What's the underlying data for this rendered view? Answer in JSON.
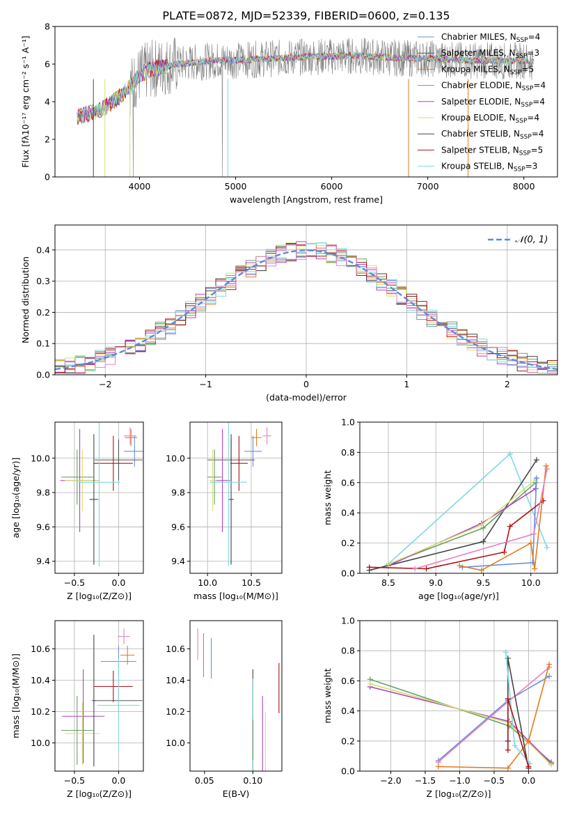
{
  "figure": {
    "title": "PLATE=0872, MJD=52339, FIBERID=0600, z=0.135"
  },
  "colors": {
    "chabrier_miles": "#6b8fdc",
    "salpeter_miles": "#555555",
    "kroupa_miles": "#e07b1a",
    "chabrier_elodie": "#6aa06a",
    "salpeter_elodie": "#b040c0",
    "kroupa_elodie": "#d4e070",
    "chabrier_stelib": "#444444",
    "salpeter_stelib": "#b01010",
    "kroupa_stelib": "#7fd8e0",
    "data_grey": "#808080",
    "pink": "#e880c0",
    "normal_curve": "#5b8cdc"
  },
  "chart_data": [
    {
      "id": "spectrum",
      "type": "line",
      "xlabel": "wavelength [Angstrom, rest frame]",
      "ylabel": "Flux [fλ10⁻¹⁷ erg cm⁻² s⁻¹ A⁻¹]",
      "xlim": [
        3120,
        8350
      ],
      "ylim": [
        0,
        8
      ],
      "xticks": [
        "4000",
        "5000",
        "6000",
        "7000",
        "8000"
      ],
      "yticks": [
        "0",
        "2",
        "4",
        "6",
        "8"
      ],
      "x": [
        3350,
        3500,
        3600,
        3700,
        3800,
        3900,
        4000,
        4100,
        4200,
        4300,
        4400,
        4600,
        4800,
        5000,
        5200,
        5400,
        5600,
        5800,
        6000,
        6200,
        6400,
        6600,
        6800,
        7000,
        7200,
        7400,
        7600,
        7800,
        8000,
        8100
      ],
      "model_y": [
        3.2,
        3.4,
        3.6,
        3.9,
        4.3,
        4.8,
        5.4,
        5.7,
        5.8,
        5.9,
        6.0,
        6.1,
        6.2,
        6.2,
        6.25,
        6.3,
        6.35,
        6.4,
        6.4,
        6.45,
        6.4,
        6.35,
        6.3,
        6.3,
        6.25,
        6.2,
        6.2,
        6.15,
        6.2,
        6.1
      ],
      "legend": [
        "Chabrier MILES, N_SSP=4",
        "Salpeter MILES, N_SSP=3",
        "Kroupa MILES, N_SSP=5",
        "Chabrier ELODIE, N_SSP=4",
        "Salpeter ELODIE, N_SSP=4",
        "Kroupa ELODIE, N_SSP=4",
        "Chabrier STELIB, N_SSP=4",
        "Salpeter STELIB, N_SSP=5",
        "Kroupa STELIB, N_SSP=3"
      ]
    },
    {
      "id": "residuals",
      "type": "line",
      "xlabel": "(data-model)/error",
      "ylabel": "Normed distribution",
      "xlim": [
        -2.5,
        2.5
      ],
      "ylim": [
        0,
        0.48
      ],
      "xticks": [
        "−2",
        "−1",
        "0",
        "1",
        "2"
      ],
      "yticks": [
        "0.0",
        "0.1",
        "0.2",
        "0.3",
        "0.4"
      ],
      "legend": [
        "𝒩(0, 1)"
      ],
      "bin_width": 0.1
    },
    {
      "id": "age_vs_z",
      "type": "scatter",
      "xlabel": "Z [log₁₀(Z/Z⊙)]",
      "ylabel": "age  [log₁₀(age/yr)]",
      "xlim": [
        -0.72,
        0.28
      ],
      "ylim": [
        9.33,
        10.21
      ],
      "xticks": [
        "−0.5",
        "0.0"
      ],
      "yticks": [
        "9.4",
        "9.6",
        "9.8",
        "10.0"
      ],
      "points": [
        {
          "color": "chabrier_miles",
          "x": 0.18,
          "xerr": 0.12,
          "y": 10.04,
          "yerr": 0.09
        },
        {
          "color": "salpeter_miles",
          "x": 0.0,
          "xerr": 0.27,
          "y": 9.99,
          "yerr": 0.12
        },
        {
          "color": "kroupa_miles",
          "x": 0.14,
          "xerr": 0.07,
          "y": 10.12,
          "yerr": 0.05
        },
        {
          "color": "chabrier_elodie",
          "x": -0.47,
          "xerr": 0.18,
          "y": 9.89,
          "yerr": 0.16
        },
        {
          "color": "salpeter_elodie",
          "x": -0.44,
          "xerr": 0.22,
          "y": 9.87,
          "yerr": 0.3
        },
        {
          "color": "kroupa_elodie",
          "x": -0.41,
          "xerr": 0.2,
          "y": 9.87,
          "yerr": 0.18
        },
        {
          "color": "chabrier_stelib",
          "x": -0.28,
          "xerr": 0.05,
          "y": 9.76,
          "yerr": 0.38
        },
        {
          "color": "salpeter_stelib",
          "x": -0.06,
          "xerr": 0.22,
          "y": 9.97,
          "yerr": 0.16
        },
        {
          "color": "kroupa_stelib",
          "x": -0.22,
          "xerr": 0.24,
          "y": 9.86,
          "yerr": 0.49
        },
        {
          "color": "pink",
          "x": 0.13,
          "xerr": 0.07,
          "y": 10.13,
          "yerr": 0.05
        }
      ]
    },
    {
      "id": "age_vs_mass",
      "type": "scatter",
      "xlabel": "mass [log₁₀(M/M⊙)]",
      "ylabel": "",
      "xlim": [
        9.8,
        10.85
      ],
      "ylim": [
        9.33,
        10.21
      ],
      "xticks": [
        "10.0",
        "10.5"
      ],
      "yticks": [
        "9.4",
        "9.6",
        "9.8",
        "10.0"
      ],
      "points": [
        {
          "color": "chabrier_miles",
          "x": 10.52,
          "xerr": 0.1,
          "y": 10.04,
          "yerr": 0.09
        },
        {
          "color": "salpeter_miles",
          "x": 10.27,
          "xerr": 0.27,
          "y": 9.99,
          "yerr": 0.12
        },
        {
          "color": "kroupa_miles",
          "x": 10.56,
          "xerr": 0.06,
          "y": 10.12,
          "yerr": 0.05
        },
        {
          "color": "chabrier_elodie",
          "x": 10.08,
          "xerr": 0.08,
          "y": 9.89,
          "yerr": 0.16
        },
        {
          "color": "salpeter_elodie",
          "x": 10.17,
          "xerr": 0.09,
          "y": 9.87,
          "yerr": 0.3
        },
        {
          "color": "kroupa_elodie",
          "x": 10.06,
          "xerr": 0.04,
          "y": 9.87,
          "yerr": 0.18
        },
        {
          "color": "chabrier_stelib",
          "x": 10.27,
          "xerr": 0.03,
          "y": 9.76,
          "yerr": 0.38
        },
        {
          "color": "salpeter_stelib",
          "x": 10.36,
          "xerr": 0.1,
          "y": 9.97,
          "yerr": 0.16
        },
        {
          "color": "kroupa_stelib",
          "x": 10.24,
          "xerr": 0.21,
          "y": 9.86,
          "yerr": 0.49
        },
        {
          "color": "pink",
          "x": 10.68,
          "xerr": 0.05,
          "y": 10.13,
          "yerr": 0.05
        }
      ]
    },
    {
      "id": "weight_vs_age",
      "type": "line",
      "xlabel": "age  [log₁₀(age/yr)]",
      "ylabel": "mass weight",
      "xlim": [
        8.2,
        10.28
      ],
      "ylim": [
        0,
        1.0
      ],
      "xticks": [
        "8.5",
        "9.0",
        "9.5",
        "10.0"
      ],
      "yticks": [
        "0.0",
        "0.2",
        "0.4",
        "0.6",
        "0.8",
        "1.0"
      ],
      "series": [
        {
          "color": "kroupa_stelib",
          "x": [
            8.48,
            9.78,
            10.17
          ],
          "y": [
            0.05,
            0.79,
            0.17
          ]
        },
        {
          "color": "chabrier_stelib",
          "x": [
            8.3,
            9.5,
            10.06
          ],
          "y": [
            0.02,
            0.21,
            0.75
          ]
        },
        {
          "color": "chabrier_elodie",
          "x": [
            8.5,
            9.5,
            10.05
          ],
          "y": [
            0.06,
            0.3,
            0.6
          ]
        },
        {
          "color": "salpeter_elodie",
          "x": [
            8.5,
            9.48,
            10.05
          ],
          "y": [
            0.05,
            0.33,
            0.56
          ]
        },
        {
          "color": "kroupa_elodie",
          "x": [
            8.5,
            9.48,
            10.05
          ],
          "y": [
            0.06,
            0.32,
            0.62
          ]
        },
        {
          "color": "chabrier_miles",
          "x": [
            9.28,
            10.02,
            10.06
          ],
          "y": [
            0.04,
            0.07,
            0.63
          ]
        },
        {
          "color": "salpeter_stelib",
          "x": [
            8.3,
            8.9,
            9.72,
            9.78,
            10.13
          ],
          "y": [
            0.04,
            0.03,
            0.14,
            0.31,
            0.48
          ]
        },
        {
          "color": "kroupa_miles",
          "x": [
            9.25,
            9.48,
            10.0,
            10.04,
            10.16
          ],
          "y": [
            0.05,
            0.02,
            0.2,
            0.03,
            0.71
          ]
        },
        {
          "color": "pink",
          "x": [
            8.78,
            10.03,
            10.17
          ],
          "y": [
            0.03,
            0.26,
            0.69
          ]
        }
      ]
    },
    {
      "id": "mass_vs_z",
      "type": "scatter",
      "xlabel": "Z [log₁₀(Z/Z⊙)]",
      "ylabel": "mass [log₁₀(M/M⊙)]",
      "xlim": [
        -0.72,
        0.28
      ],
      "ylim": [
        9.82,
        10.78
      ],
      "xticks": [
        "−0.5",
        "0.0"
      ],
      "yticks": [
        "10.0",
        "10.2",
        "10.4",
        "10.6"
      ],
      "points": [
        {
          "color": "chabrier_miles",
          "x": 0.0,
          "xerr": 0.2,
          "y": 10.52,
          "yerr": 0.1
        },
        {
          "color": "salpeter_miles",
          "x": 0.0,
          "xerr": 0.27,
          "y": 10.27,
          "yerr": 0.1
        },
        {
          "color": "kroupa_miles",
          "x": 0.1,
          "xerr": 0.08,
          "y": 10.56,
          "yerr": 0.06
        },
        {
          "color": "chabrier_elodie",
          "x": -0.47,
          "xerr": 0.18,
          "y": 10.08,
          "yerr": 0.22
        },
        {
          "color": "salpeter_elodie",
          "x": -0.4,
          "xerr": 0.24,
          "y": 10.17,
          "yerr": 0.3
        },
        {
          "color": "kroupa_elodie",
          "x": -0.41,
          "xerr": 0.2,
          "y": 10.06,
          "yerr": 0.2
        },
        {
          "color": "chabrier_stelib",
          "x": -0.28,
          "xerr": 0.02,
          "y": 10.27,
          "yerr": 0.42
        },
        {
          "color": "salpeter_stelib",
          "x": -0.06,
          "xerr": 0.22,
          "y": 10.36,
          "yerr": 0.1
        },
        {
          "color": "kroupa_stelib",
          "x": 0.0,
          "xerr": 0.24,
          "y": 10.24,
          "yerr": 0.3
        },
        {
          "color": "pink",
          "x": 0.06,
          "xerr": 0.07,
          "y": 10.68,
          "yerr": 0.05
        }
      ]
    },
    {
      "id": "mass_vs_ebv",
      "type": "scatter",
      "xlabel": "E(B-V)",
      "ylabel": "",
      "xlim": [
        0.035,
        0.13
      ],
      "ylim": [
        9.82,
        10.78
      ],
      "xticks": [
        "0.05",
        "0.10"
      ],
      "yticks": [
        "10.0",
        "10.2",
        "10.4",
        "10.6"
      ],
      "points": [
        {
          "color": "pink",
          "x": 0.043,
          "xerr": 0.0,
          "y": 10.63,
          "yerr": 0.1
        },
        {
          "color": "kroupa_miles",
          "x": 0.049,
          "xerr": 0.0,
          "y": 10.56,
          "yerr": 0.14
        },
        {
          "color": "chabrier_miles",
          "x": 0.057,
          "xerr": 0.0,
          "y": 10.54,
          "yerr": 0.13
        },
        {
          "color": "chabrier_stelib",
          "x": 0.1,
          "xerr": 0.0,
          "y": 10.1,
          "yerr": 0.37
        },
        {
          "color": "kroupa_stelib",
          "x": 0.1,
          "xerr": 0.0,
          "y": 10.07,
          "yerr": 0.34
        },
        {
          "color": "chabrier_elodie",
          "x": 0.1,
          "xerr": 0.0,
          "y": 10.02,
          "yerr": 0.13
        },
        {
          "color": "salpeter_elodie",
          "x": 0.11,
          "xerr": 0.0,
          "y": 10.03,
          "yerr": 0.27
        },
        {
          "color": "kroupa_elodie",
          "x": 0.113,
          "xerr": 0.0,
          "y": 10.0,
          "yerr": 0.2
        },
        {
          "color": "salpeter_stelib",
          "x": 0.127,
          "xerr": 0.0,
          "y": 10.35,
          "yerr": 0.16
        }
      ]
    },
    {
      "id": "weight_vs_z",
      "type": "line",
      "xlabel": "Z [log₁₀(Z/Z⊙)]",
      "ylabel": "mass weight",
      "xlim": [
        -2.45,
        0.42
      ],
      "ylim": [
        0,
        1.0
      ],
      "xticks": [
        "−2.0",
        "−1.5",
        "−1.0",
        "−0.5",
        "0.0"
      ],
      "yticks": [
        "0.0",
        "0.2",
        "0.4",
        "0.6",
        "0.8",
        "1.0"
      ],
      "series": [
        {
          "color": "chabrier_elodie",
          "x": [
            -2.3,
            -0.28,
            0.33
          ],
          "y": [
            0.61,
            0.3,
            0.06
          ]
        },
        {
          "color": "salpeter_elodie",
          "x": [
            -2.3,
            -0.28,
            0.33
          ],
          "y": [
            0.56,
            0.33,
            0.05
          ]
        },
        {
          "color": "kroupa_elodie",
          "x": [
            -2.3,
            -0.28,
            0.33
          ],
          "y": [
            0.58,
            0.32,
            0.04
          ]
        },
        {
          "color": "chabrier_miles",
          "x": [
            -1.31,
            -0.3,
            0.3
          ],
          "y": [
            0.07,
            0.47,
            0.63
          ]
        },
        {
          "color": "pink",
          "x": [
            -1.31,
            -0.3,
            0.3
          ],
          "y": [
            0.06,
            0.46,
            0.69
          ]
        },
        {
          "color": "kroupa_miles",
          "x": [
            -1.31,
            -0.3,
            0.0,
            0.3
          ],
          "y": [
            0.03,
            0.02,
            0.2,
            0.71
          ]
        },
        {
          "color": "chabrier_stelib",
          "x": [
            -0.3,
            -0.3,
            0.0
          ],
          "y": [
            0.2,
            0.75,
            0.02
          ]
        },
        {
          "color": "kroupa_stelib",
          "x": [
            -0.33,
            -0.2,
            0.02
          ],
          "y": [
            0.79,
            0.17,
            0.05
          ]
        },
        {
          "color": "salpeter_stelib",
          "x": [
            -0.3,
            -0.3,
            0.0
          ],
          "y": [
            0.14,
            0.48,
            0.03
          ]
        }
      ]
    }
  ]
}
